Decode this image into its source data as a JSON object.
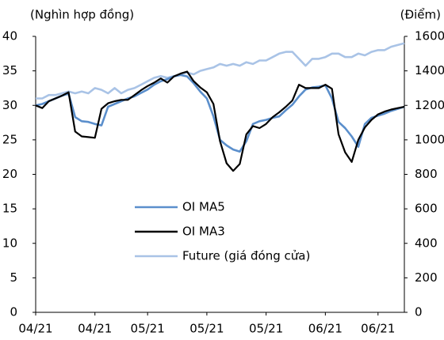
{
  "chart_data": {
    "type": "line",
    "y_label": "(Nghìn hợp đồng)",
    "y2_label": "(Điểm)",
    "categories": [
      "04/21",
      null,
      null,
      null,
      null,
      null,
      null,
      null,
      null,
      "04/21",
      null,
      null,
      null,
      null,
      null,
      null,
      null,
      "05/21",
      null,
      null,
      null,
      null,
      null,
      null,
      null,
      null,
      "05/21",
      null,
      null,
      null,
      null,
      null,
      null,
      null,
      null,
      "05/21",
      null,
      null,
      null,
      null,
      null,
      null,
      null,
      null,
      "06/21",
      null,
      null,
      null,
      null,
      null,
      null,
      null,
      "06/21",
      null,
      null,
      null,
      null
    ],
    "series": [
      {
        "name": "OI MA5",
        "color": "#5b8fcc",
        "values": [
          30,
          30.2,
          30.6,
          31,
          31.4,
          31.7,
          28.3,
          27.7,
          27.6,
          27.3,
          27.1,
          29.8,
          30.2,
          30.6,
          31.0,
          31.3,
          31.8,
          32.3,
          33.0,
          33.5,
          33.8,
          34.2,
          34.4,
          34.2,
          33.2,
          32.0,
          31.0,
          28.4,
          25.0,
          24.2,
          23.6,
          23.3,
          24.8,
          27.3,
          27.7,
          27.9,
          28.2,
          28.4,
          29.3,
          30.1,
          31.3,
          32.3,
          32.6,
          32.7,
          32.9,
          31.0,
          27.6,
          26.7,
          25.5,
          24.0,
          27.3,
          28.2,
          28.5,
          28.8,
          29.2,
          29.5,
          29.8
        ]
      },
      {
        "name": "OI MA3",
        "color": "#000000",
        "values": [
          30,
          29.6,
          30.6,
          31,
          31.4,
          31.9,
          26.2,
          25.5,
          25.4,
          25.3,
          29.5,
          30.3,
          30.6,
          30.8,
          30.8,
          31.5,
          32.2,
          32.8,
          33.3,
          33.9,
          33.3,
          34.2,
          34.6,
          34.9,
          33.5,
          32.6,
          31.9,
          30.2,
          24.8,
          21.6,
          20.5,
          21.5,
          25.8,
          27.0,
          26.7,
          27.3,
          28.3,
          29.0,
          29.8,
          30.7,
          33.0,
          32.5,
          32.5,
          32.5,
          33.0,
          32.4,
          25.8,
          23.2,
          21.8,
          25.0,
          26.8,
          27.9,
          28.7,
          29.1,
          29.4,
          29.6,
          29.8
        ]
      },
      {
        "name": "Future (giá đóng cửa)",
        "color": "#a9c3e6",
        "axis": "y2",
        "values": [
          1240,
          1240,
          1260,
          1260,
          1270,
          1280,
          1270,
          1280,
          1270,
          1300,
          1290,
          1270,
          1300,
          1270,
          1290,
          1300,
          1320,
          1340,
          1360,
          1370,
          1360,
          1370,
          1380,
          1390,
          1380,
          1400,
          1410,
          1420,
          1440,
          1430,
          1440,
          1430,
          1450,
          1440,
          1460,
          1460,
          1480,
          1500,
          1510,
          1510,
          1470,
          1430,
          1470,
          1470,
          1480,
          1500,
          1500,
          1480,
          1480,
          1500,
          1490,
          1510,
          1520,
          1520,
          1540,
          1550,
          1560
        ]
      }
    ],
    "ylim": [
      0,
      40
    ],
    "yticks": [
      0,
      5,
      10,
      15,
      20,
      25,
      30,
      35,
      40
    ],
    "y2lim": [
      0,
      1600
    ],
    "y2ticks": [
      0,
      200,
      400,
      600,
      800,
      1000,
      1200,
      1400,
      1600
    ],
    "legend": "center",
    "grid": false
  }
}
